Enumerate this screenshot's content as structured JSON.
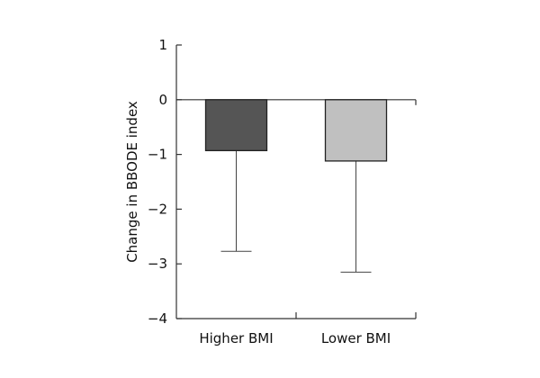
{
  "chart_data": {
    "type": "bar",
    "title": "",
    "xlabel": "",
    "ylabel": "Change in BBODE index",
    "ylim": [
      -4,
      1
    ],
    "yticks": [
      1,
      0,
      -1,
      -2,
      -3,
      -4
    ],
    "ytick_labels": [
      "1",
      "0",
      "−1",
      "−2",
      "−3",
      "−4"
    ],
    "categories": [
      "Higher BMI",
      "Lower BMI"
    ],
    "values": [
      -0.93,
      -1.12
    ],
    "error_lower": [
      -2.77,
      -3.15
    ],
    "bar_colors": [
      "#555555",
      "#c0c0c0"
    ],
    "grid": false,
    "legend": "none"
  }
}
